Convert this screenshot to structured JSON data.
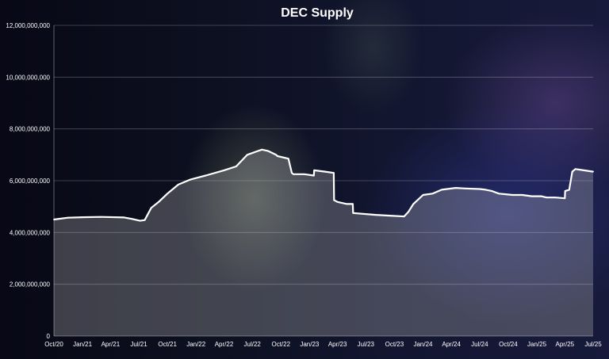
{
  "chart_data": {
    "type": "area",
    "title": "DEC Supply",
    "xlabel": "",
    "ylabel": "",
    "ylim": [
      0,
      12000000000
    ],
    "yticks": [
      0,
      2000000000,
      4000000000,
      6000000000,
      8000000000,
      10000000000,
      12000000000
    ],
    "ytick_labels": [
      "0",
      "2,000,000,000",
      "4,000,000,000",
      "6,000,000,000",
      "8,000,000,000",
      "10,000,000,000",
      "12,000,000,000"
    ],
    "xlim": [
      "2020-10-01",
      "2025-07-01"
    ],
    "xticks": [
      "2020-10-01",
      "2021-01-01",
      "2021-04-01",
      "2021-07-01",
      "2021-10-01",
      "2022-01-01",
      "2022-04-01",
      "2022-07-01",
      "2022-10-01",
      "2023-01-01",
      "2023-04-01",
      "2023-07-01",
      "2023-10-01",
      "2024-01-01",
      "2024-04-01",
      "2024-07-01",
      "2024-10-01",
      "2025-01-01",
      "2025-04-01",
      "2025-07-01"
    ],
    "xtick_labels": [
      "Oct/20",
      "Jan/21",
      "Apr/21",
      "Jul/21",
      "Oct/21",
      "Jan/22",
      "Apr/22",
      "Jul/22",
      "Oct/22",
      "Jan/23",
      "Apr/23",
      "Jul/23",
      "Oct/23",
      "Jan/24",
      "Apr/24",
      "Jul/24",
      "Oct/24",
      "Jan/25",
      "Apr/25",
      "Jul/25"
    ],
    "grid": true,
    "legend": "none",
    "series": [
      {
        "x": [
          "2020-10-01",
          "2020-11-15",
          "2021-01-01",
          "2021-03-01",
          "2021-05-15",
          "2021-06-10",
          "2021-06-25",
          "2021-07-05",
          "2021-07-20",
          "2021-08-10",
          "2021-09-05",
          "2021-10-01",
          "2021-11-05",
          "2021-12-15",
          "2022-02-01",
          "2022-04-01",
          "2022-05-10",
          "2022-06-15",
          "2022-07-20",
          "2022-08-01",
          "2022-08-20",
          "2022-09-15",
          "2022-09-20",
          "2022-10-25",
          "2022-11-05",
          "2022-11-10",
          "2022-12-15",
          "2023-01-15",
          "2023-01-16",
          "2023-02-20",
          "2023-03-20",
          "2023-03-21",
          "2023-04-01",
          "2023-05-01",
          "2023-05-20",
          "2023-05-21",
          "2023-08-01",
          "2023-09-15",
          "2023-11-01",
          "2023-11-15",
          "2023-12-01",
          "2024-01-01",
          "2024-02-01",
          "2024-03-01",
          "2024-04-15",
          "2024-05-15",
          "2024-07-01",
          "2024-07-20",
          "2024-08-10",
          "2024-09-01",
          "2024-10-15",
          "2024-11-15",
          "2024-12-15",
          "2025-01-15",
          "2025-02-01",
          "2025-03-01",
          "2025-04-01",
          "2025-04-02",
          "2025-04-15",
          "2025-04-25",
          "2025-05-05",
          "2025-06-01",
          "2025-07-01"
        ],
        "values": [
          4500000000,
          4570000000,
          4590000000,
          4600000000,
          4580000000,
          4520000000,
          4480000000,
          4450000000,
          4480000000,
          4950000000,
          5200000000,
          5500000000,
          5850000000,
          6050000000,
          6200000000,
          6400000000,
          6550000000,
          7000000000,
          7150000000,
          7200000000,
          7150000000,
          7000000000,
          6950000000,
          6850000000,
          6300000000,
          6250000000,
          6250000000,
          6200000000,
          6400000000,
          6350000000,
          6300000000,
          5250000000,
          5180000000,
          5100000000,
          5100000000,
          4750000000,
          4680000000,
          4650000000,
          4620000000,
          4800000000,
          5100000000,
          5450000000,
          5500000000,
          5650000000,
          5720000000,
          5700000000,
          5680000000,
          5650000000,
          5600000000,
          5500000000,
          5450000000,
          5450000000,
          5400000000,
          5400000000,
          5350000000,
          5350000000,
          5320000000,
          5600000000,
          5650000000,
          6350000000,
          6450000000,
          6400000000,
          6350000000
        ]
      }
    ],
    "line_color": "#ffffff",
    "fill_color": "rgba(190,190,190,0.30)"
  }
}
